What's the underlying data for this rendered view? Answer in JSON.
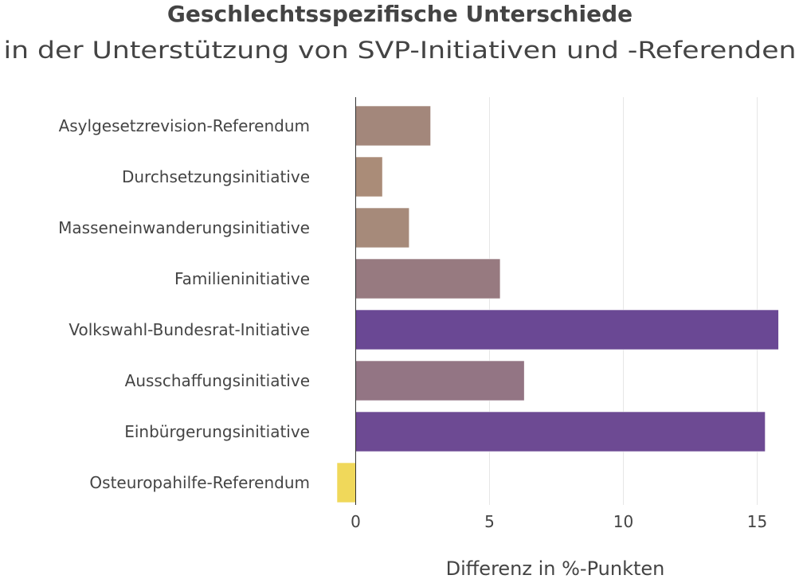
{
  "chart_data": {
    "type": "bar",
    "orientation": "horizontal",
    "title": "Geschlechtsspezifische Unterschiede",
    "subtitle": "in der Unterstützung von SVP-Initiativen und -Referenden",
    "xlabel": "Differenz in %-Punkten",
    "ylabel": "",
    "xlim": [
      -0.7,
      16
    ],
    "xticks": [
      0,
      5,
      10,
      15
    ],
    "xtick_labels": [
      "0",
      "5",
      "10",
      "15"
    ],
    "grid": "vertical",
    "categories": [
      "Asylgesetzrevision-Referendum",
      "Durchsetzungsinitiative",
      "Masseneinwanderungsinitiative",
      "Familieninitiative",
      "Volkswahl-Bundesrat-Initiative",
      "Ausschaffungsinitiative",
      "Einbürgerungsinitiative",
      "Osteuropahilfe-Referendum"
    ],
    "values": [
      2.8,
      1.0,
      2.0,
      5.4,
      15.8,
      6.3,
      15.3,
      -0.7
    ],
    "colors": [
      "#a3877b",
      "#aa8c78",
      "#a68a7a",
      "#977a80",
      "#6a4894",
      "#937584",
      "#6d4a93",
      "#f0d85a"
    ]
  }
}
